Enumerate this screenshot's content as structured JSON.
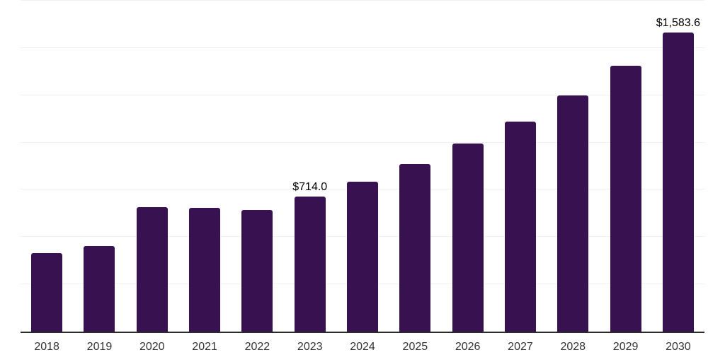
{
  "colors": {
    "background": "#ffffff",
    "bar": "#381150",
    "axis_line": "#2b2b2b",
    "gridline": "#f2f2f2",
    "tick_label": "#333333",
    "data_label": "#000000"
  },
  "chart_data": {
    "type": "bar",
    "title": "",
    "xlabel": "",
    "ylabel": "",
    "categories": [
      "2018",
      "2019",
      "2020",
      "2021",
      "2022",
      "2023",
      "2024",
      "2025",
      "2026",
      "2027",
      "2028",
      "2029",
      "2030"
    ],
    "values": [
      414,
      451,
      657,
      653,
      644,
      714.0,
      794,
      886,
      993,
      1109,
      1249,
      1407,
      1583.6
    ],
    "data_labels": [
      "",
      "",
      "",
      "",
      "",
      "$714.0",
      "",
      "",
      "",
      "",
      "",
      "",
      "$1,583.6"
    ],
    "ylim": [
      0,
      1750
    ],
    "grid_interval": 250,
    "grid": true,
    "legend": false,
    "value_axis_labels_visible": false
  }
}
